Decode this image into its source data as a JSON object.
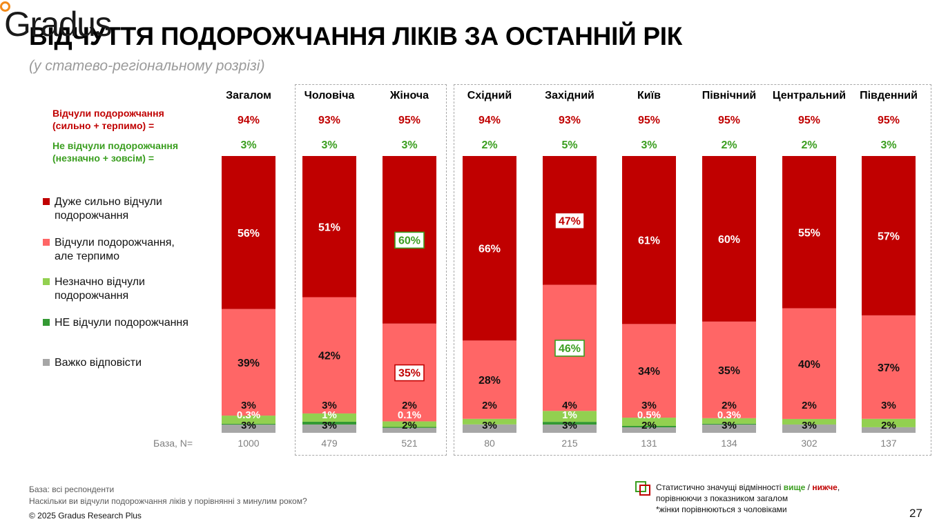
{
  "header": {
    "title": "ВІДЧУТТЯ ПОДОРОЖЧАННЯ ЛІКІВ ЗА ОСТАННІЙ РІК",
    "subtitle": "(у статево-регіональному розрізі)",
    "logo_text": "Gradus"
  },
  "colors": {
    "very_strong": "#c00000",
    "tolerable": "#ff6666",
    "slight": "#92d050",
    "not_felt": "#339933",
    "hard_to_say": "#a6a6a6",
    "summary_red": "#c00000",
    "summary_green": "#3a9e1f",
    "sig_higher": "#3a9e1f",
    "sig_lower": "#c00000"
  },
  "summary_rows": {
    "felt_label_1": "Відчули подорожчання",
    "felt_label_2": "(сильно + терпимо) =",
    "not_felt_label_1": "Не відчули подорожчання",
    "not_felt_label_2": "(незначно + зовсім) ="
  },
  "legend": [
    {
      "label_1": "Дуже сильно відчули",
      "label_2": "подорожчання",
      "color_key": "very_strong"
    },
    {
      "label_1": "Відчули подорожчання,",
      "label_2": "але терпимо",
      "color_key": "tolerable"
    },
    {
      "label_1": "Незначно відчули",
      "label_2": "подорожчання",
      "color_key": "slight"
    },
    {
      "label_1": "НЕ відчули подорожчання",
      "label_2": "",
      "color_key": "not_felt"
    },
    {
      "label_1": "Важко відповісти",
      "label_2": "",
      "color_key": "hard_to_say"
    }
  ],
  "base_label": "База, N=",
  "footer": {
    "base_note": "База: всі респонденти",
    "question": "Наскільки ви відчули подорожчання ліків у порівнянні з минулим роком?",
    "copyright": "© 2025 Gradus Research Plus",
    "sig_text_1": "Статистично значущі відмінності ",
    "sig_higher": "вище",
    "sig_sep": " / ",
    "sig_lower": "нижче",
    "sig_comma": ",",
    "sig_text_2": "порівнюючи з показником загалом",
    "sig_text_3": "*жінки порівнюються з чоловіками",
    "page_number": "27"
  },
  "chart_data": {
    "type": "bar",
    "stacked": true,
    "categories": [
      "Загалом",
      "Чоловіча",
      "Жіноча",
      "Східний",
      "Західний",
      "Київ",
      "Північний",
      "Центральний",
      "Південний"
    ],
    "felt_total": [
      "94%",
      "93%",
      "95%",
      "94%",
      "93%",
      "95%",
      "95%",
      "95%",
      "95%"
    ],
    "not_felt_total": [
      "3%",
      "3%",
      "3%",
      "2%",
      "5%",
      "3%",
      "2%",
      "2%",
      "3%"
    ],
    "base_n": [
      "1000",
      "479",
      "521",
      "80",
      "215",
      "131",
      "134",
      "302",
      "137"
    ],
    "series": [
      {
        "name": "Важко відповісти",
        "color_key": "hard_to_say",
        "values": [
          3,
          3,
          2,
          3,
          3,
          2,
          3,
          3,
          2
        ],
        "labels": [
          "3%",
          "3%",
          "2%",
          "3%",
          "3%",
          "2%",
          "3%",
          "3%",
          "2%"
        ]
      },
      {
        "name": "НЕ відчули подорожчання",
        "color_key": "not_felt",
        "values": [
          0.3,
          1,
          0.1,
          0,
          1,
          0.5,
          0.3,
          0,
          0
        ],
        "labels": [
          "0.3%",
          "1%",
          "0.1%",
          "",
          "1%",
          "0.5%",
          "0.3%",
          "",
          ""
        ]
      },
      {
        "name": "Незначно відчули подорожчання",
        "color_key": "slight",
        "values": [
          3,
          3,
          2,
          2,
          4,
          3,
          2,
          2,
          3
        ],
        "labels": [
          "3%",
          "3%",
          "2%",
          "2%",
          "4%",
          "3%",
          "2%",
          "2%",
          "3%"
        ]
      },
      {
        "name": "Відчули подорожчання, але терпимо",
        "color_key": "tolerable",
        "values": [
          39,
          42,
          35,
          28,
          46,
          34,
          35,
          40,
          37
        ],
        "labels": [
          "39%",
          "42%",
          "35%",
          "28%",
          "46%",
          "34%",
          "35%",
          "40%",
          "37%"
        ],
        "significance": [
          "",
          "",
          "lower",
          "",
          "higher",
          "",
          "",
          "",
          ""
        ]
      },
      {
        "name": "Дуже сильно відчули подорожчання",
        "color_key": "very_strong",
        "values": [
          56,
          51,
          60,
          66,
          47,
          61,
          60,
          55,
          57
        ],
        "labels": [
          "56%",
          "51%",
          "60%",
          "66%",
          "47%",
          "61%",
          "60%",
          "55%",
          "57%"
        ],
        "significance": [
          "",
          "",
          "higher",
          "",
          "lower",
          "",
          "",
          "",
          ""
        ]
      }
    ],
    "ylim": [
      0,
      100
    ],
    "legend_position": "left"
  }
}
